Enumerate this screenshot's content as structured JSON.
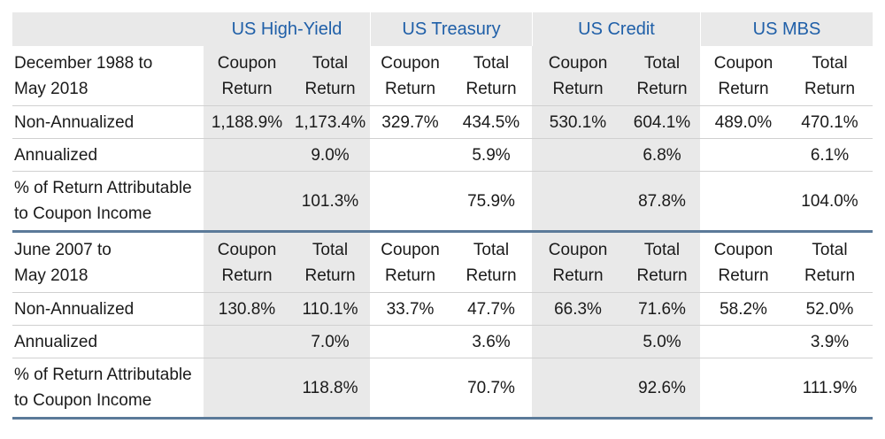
{
  "groups": [
    "US High-Yield",
    "US Treasury",
    "US Credit",
    "US MBS"
  ],
  "col_coupon": [
    "Coupon",
    "Return"
  ],
  "col_total": [
    "Total",
    "Return"
  ],
  "sections": [
    {
      "period": [
        "December 1988 to",
        "May 2018"
      ],
      "rows": [
        {
          "label": [
            "Non-Annualized"
          ],
          "values": [
            "1,188.9%",
            "1,173.4%",
            "329.7%",
            "434.5%",
            "530.1%",
            "604.1%",
            "489.0%",
            "470.1%"
          ]
        },
        {
          "label": [
            "Annualized"
          ],
          "values": [
            "",
            "9.0%",
            "",
            "5.9%",
            "",
            "6.8%",
            "",
            "6.1%"
          ]
        },
        {
          "label": [
            "% of Return Attributable",
            "to Coupon Income"
          ],
          "values": [
            "",
            "101.3%",
            "",
            "75.9%",
            "",
            "87.8%",
            "",
            "104.0%"
          ]
        }
      ]
    },
    {
      "period": [
        "June 2007 to",
        "May 2018"
      ],
      "rows": [
        {
          "label": [
            "Non-Annualized"
          ],
          "values": [
            "130.8%",
            "110.1%",
            "33.7%",
            "47.7%",
            "66.3%",
            "71.6%",
            "58.2%",
            "52.0%"
          ]
        },
        {
          "label": [
            "Annualized"
          ],
          "values": [
            "",
            "7.0%",
            "",
            "3.6%",
            "",
            "5.0%",
            "",
            "3.9%"
          ]
        },
        {
          "label": [
            "% of Return Attributable",
            "to Coupon Income"
          ],
          "values": [
            "",
            "118.8%",
            "",
            "70.7%",
            "",
            "92.6%",
            "",
            "111.9%"
          ]
        }
      ]
    }
  ]
}
